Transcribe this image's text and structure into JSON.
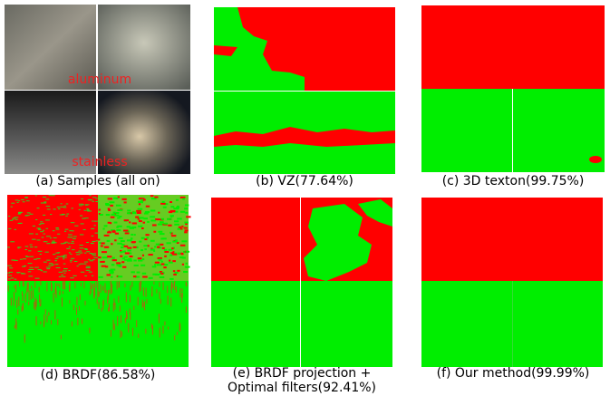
{
  "figure": {
    "panels": [
      {
        "caption": [
          "(a) Samples (all on)"
        ],
        "labels": [
          "aluminum",
          "stainless"
        ]
      },
      {
        "caption": [
          "(b) VZ(77.64%)"
        ]
      },
      {
        "caption": [
          "(c) 3D texton(99.75%)"
        ]
      },
      {
        "caption": [
          "(d) BRDF(86.58%)"
        ]
      },
      {
        "caption": [
          "(e) BRDF projection +",
          "Optimal filters(92.41%)"
        ]
      },
      {
        "caption": [
          "(f) Our method(99.99%)"
        ]
      }
    ]
  }
}
